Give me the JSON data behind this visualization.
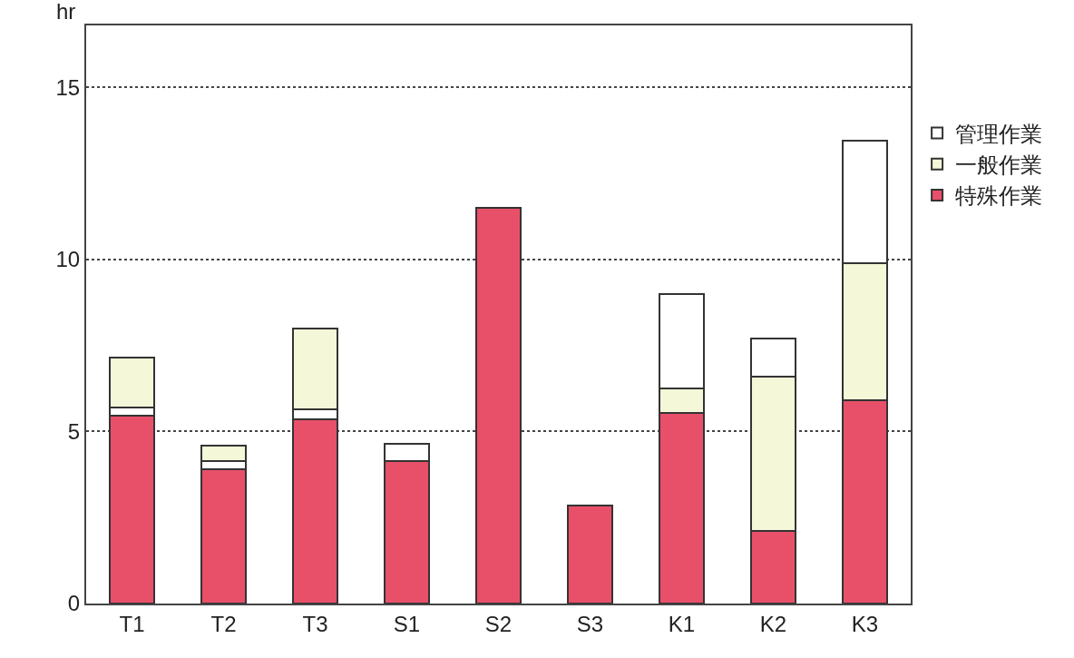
{
  "chart_data": {
    "type": "bar",
    "stacked": true,
    "ylabel": "hr",
    "categories": [
      "T1",
      "T2",
      "T3",
      "S1",
      "S2",
      "S3",
      "K1",
      "K2",
      "K3"
    ],
    "series": [
      {
        "name": "特殊作業",
        "color": "#e8506a",
        "values": [
          5.45,
          3.9,
          5.35,
          4.15,
          11.5,
          2.85,
          5.55,
          2.1,
          5.9
        ]
      },
      {
        "color": "#ffffff",
        "values": [
          0.25,
          0.25,
          0.3,
          0.5,
          null,
          null,
          null,
          null,
          null
        ]
      },
      {
        "name": "一般作業",
        "color": "#f4f8d8",
        "values": [
          1.45,
          0.45,
          2.35,
          null,
          null,
          null,
          0.7,
          4.5,
          4.0
        ]
      },
      {
        "name": "管理作業",
        "color": "#ffffff",
        "values": [
          null,
          null,
          null,
          null,
          null,
          null,
          2.75,
          1.1,
          3.55
        ]
      }
    ],
    "ylim": [
      0,
      16.8
    ],
    "yticks": [
      0,
      5,
      10,
      15
    ],
    "grid": "y",
    "legend": "right"
  }
}
